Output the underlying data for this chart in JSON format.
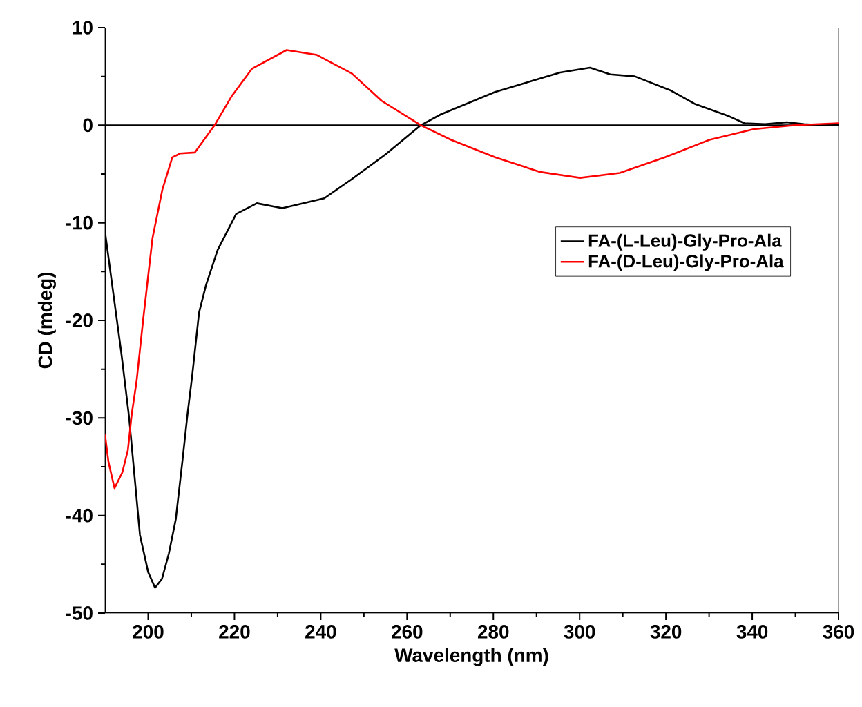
{
  "chart_data": {
    "type": "line",
    "xlabel": "Wavelength (nm)",
    "ylabel": "CD (mdeg)",
    "xlim": [
      190,
      360
    ],
    "xticks": [
      200,
      220,
      240,
      260,
      280,
      300,
      320,
      340,
      360
    ],
    "ylim": [
      -50,
      10
    ],
    "yticks": [
      -50,
      -40,
      -30,
      -20,
      -10,
      0,
      10
    ],
    "grid": false,
    "legend": "right",
    "marker": "none",
    "line_style": "solid",
    "ref_lines": [
      {
        "axis": "y",
        "value": 0,
        "color": "#000000"
      }
    ],
    "series": [
      {
        "name": "FA-(L-Leu)-Gly-Pro-Ala",
        "color": "#000000",
        "x": [
          190,
          193.8,
          195.6,
          198.1,
          200,
          201.6,
          203.2,
          204.8,
          206.4,
          208,
          209.1,
          210.2,
          211.8,
          213.4,
          216.1,
          220.4,
          225.2,
          231.1,
          240.8,
          247.3,
          255,
          263.2,
          267.8,
          280.4,
          295.5,
          302.4,
          307.1,
          312.8,
          320.9,
          326.6,
          334.7,
          338.2,
          343,
          348,
          352,
          356,
          360
        ],
        "values": [
          -10.9,
          -23.4,
          -30,
          -42,
          -45.8,
          -47.4,
          -46.5,
          -43.9,
          -40.4,
          -34.2,
          -29.7,
          -25.7,
          -19.2,
          -16.4,
          -12.8,
          -9.1,
          -8.0,
          -8.5,
          -7.5,
          -5.5,
          -3,
          0,
          1.1,
          3.4,
          5.4,
          5.9,
          5.2,
          5.0,
          3.6,
          2.2,
          0.9,
          0.2,
          0.1,
          0.3,
          0.1,
          0,
          0
        ]
      },
      {
        "name": "FA-(D-Leu)-Gly-Pro-Ala",
        "color": "#ff0000",
        "x": [
          190,
          190.8,
          192.2,
          194,
          195.3,
          196.2,
          197.3,
          198.9,
          201,
          203.3,
          205.6,
          207.4,
          210.8,
          215.4,
          219.4,
          224.1,
          232.1,
          239.1,
          247.2,
          254.1,
          263.2,
          270.2,
          280.5,
          290.9,
          300.1,
          309.3,
          319.7,
          330.1,
          340.4,
          350,
          360
        ],
        "values": [
          -31.7,
          -34.5,
          -37.2,
          -35.6,
          -33.3,
          -29.6,
          -26.3,
          -19.7,
          -11.6,
          -6.6,
          -3.3,
          -2.9,
          -2.8,
          0,
          3.0,
          5.8,
          7.7,
          7.2,
          5.3,
          2.5,
          0,
          -1.5,
          -3.3,
          -4.8,
          -5.4,
          -4.9,
          -3.3,
          -1.5,
          -0.4,
          0,
          0.2
        ]
      }
    ]
  }
}
